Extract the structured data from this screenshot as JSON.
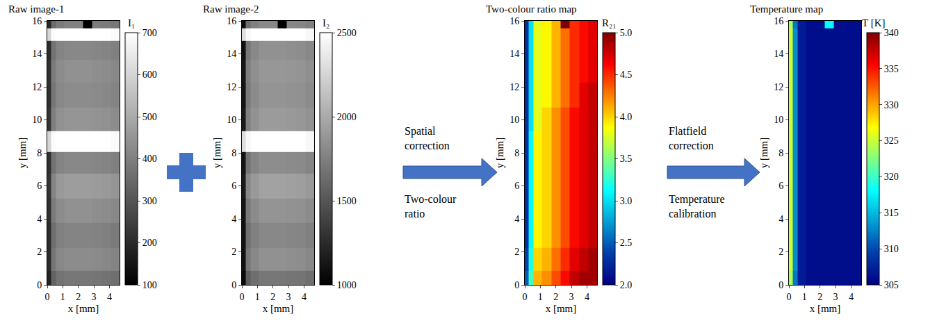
{
  "chart_data": [
    {
      "type": "heatmap",
      "title": "Raw image-1",
      "x_label": "x [mm]",
      "y_label": "y [mm]",
      "colorbar_title": "I₁",
      "color": "gray",
      "xlim": [
        0,
        4.65
      ],
      "ylim": [
        0,
        16
      ],
      "xticks": [
        0,
        1,
        2,
        3,
        4
      ],
      "yticks": [
        0,
        2,
        4,
        6,
        8,
        10,
        12,
        14,
        16
      ],
      "grid": false,
      "zlim": [
        100,
        700
      ],
      "zticks": [
        100,
        200,
        300,
        400,
        500,
        600,
        700
      ],
      "x": [
        0.1,
        0.35,
        0.8,
        1.4,
        2.0,
        2.6,
        3.2,
        3.8,
        4.4
      ],
      "y": [
        0.2,
        1.5,
        3,
        4.5,
        6,
        7.5,
        8.6,
        10,
        11.5,
        13,
        14.3,
        15.3,
        15.8
      ],
      "z": [
        [
          180,
          330,
          370,
          380,
          380,
          380,
          375,
          370,
          360
        ],
        [
          200,
          380,
          420,
          430,
          430,
          430,
          425,
          420,
          410
        ],
        [
          200,
          360,
          400,
          410,
          410,
          410,
          405,
          400,
          390
        ],
        [
          210,
          390,
          430,
          440,
          440,
          440,
          435,
          430,
          420
        ],
        [
          220,
          410,
          460,
          470,
          470,
          470,
          465,
          460,
          450
        ],
        [
          210,
          370,
          410,
          420,
          420,
          420,
          415,
          410,
          400
        ],
        [
          600,
          690,
          700,
          700,
          700,
          700,
          700,
          700,
          690
        ],
        [
          220,
          400,
          440,
          450,
          450,
          450,
          445,
          440,
          430
        ],
        [
          210,
          380,
          420,
          430,
          430,
          430,
          425,
          420,
          410
        ],
        [
          210,
          390,
          430,
          440,
          440,
          440,
          435,
          430,
          420
        ],
        [
          200,
          370,
          410,
          420,
          420,
          420,
          415,
          410,
          400
        ],
        [
          600,
          690,
          700,
          700,
          700,
          700,
          700,
          700,
          690
        ],
        [
          190,
          350,
          390,
          400,
          400,
          100,
          395,
          390,
          380
        ]
      ]
    },
    {
      "type": "heatmap",
      "title": "Raw image-2",
      "x_label": "x [mm]",
      "y_label": "y [mm]",
      "colorbar_title": "I₂",
      "color": "gray",
      "xlim": [
        0,
        4.65
      ],
      "ylim": [
        0,
        16
      ],
      "xticks": [
        0,
        1,
        2,
        3,
        4
      ],
      "yticks": [
        0,
        2,
        4,
        6,
        8,
        10,
        12,
        14,
        16
      ],
      "grid": false,
      "zlim": [
        1000,
        2500
      ],
      "zticks": [
        1000,
        1500,
        2000,
        2500
      ],
      "x": [
        0.1,
        0.35,
        0.8,
        1.4,
        2.0,
        2.6,
        3.2,
        3.8,
        4.4
      ],
      "y": [
        0.2,
        1.5,
        3,
        4.5,
        6,
        7.5,
        8.6,
        10,
        11.5,
        13,
        14.3,
        15.3,
        15.8
      ],
      "z": [
        [
          1050,
          1550,
          1650,
          1700,
          1700,
          1700,
          1690,
          1680,
          1650
        ],
        [
          1100,
          1700,
          1800,
          1850,
          1850,
          1850,
          1840,
          1830,
          1800
        ],
        [
          1100,
          1650,
          1750,
          1800,
          1800,
          1800,
          1790,
          1780,
          1750
        ],
        [
          1120,
          1720,
          1820,
          1870,
          1870,
          1870,
          1860,
          1850,
          1820
        ],
        [
          1150,
          1800,
          1900,
          1950,
          1950,
          1950,
          1940,
          1930,
          1900
        ],
        [
          1120,
          1680,
          1780,
          1830,
          1830,
          1830,
          1820,
          1810,
          1780
        ],
        [
          2300,
          2450,
          2500,
          2500,
          2500,
          2500,
          2500,
          2500,
          2450
        ],
        [
          1150,
          1760,
          1860,
          1910,
          1910,
          1910,
          1900,
          1890,
          1860
        ],
        [
          1120,
          1720,
          1820,
          1870,
          1870,
          1870,
          1860,
          1850,
          1820
        ],
        [
          1130,
          1740,
          1840,
          1890,
          1890,
          1890,
          1880,
          1870,
          1840
        ],
        [
          1100,
          1700,
          1800,
          1850,
          1850,
          1850,
          1840,
          1830,
          1800
        ],
        [
          2300,
          2450,
          2500,
          2500,
          2500,
          2500,
          2500,
          2500,
          2450
        ],
        [
          1080,
          1650,
          1750,
          1800,
          1800,
          1000,
          1790,
          1780,
          1750
        ]
      ]
    },
    {
      "type": "heatmap",
      "title": "Two-colour ratio map",
      "x_label": "x [mm]",
      "y_label": "y [mm]",
      "colorbar_title": "R₂₁",
      "color": "jet",
      "xlim": [
        0,
        4.65
      ],
      "ylim": [
        0,
        16
      ],
      "xticks": [
        0,
        1,
        2,
        3,
        4
      ],
      "yticks": [
        0,
        2,
        4,
        6,
        8,
        10,
        12,
        14,
        16
      ],
      "grid": false,
      "zlim": [
        2.0,
        5.0
      ],
      "zticks": [
        {
          "value": 2,
          "label": "2.0"
        },
        {
          "value": 2.5,
          "label": "2.5"
        },
        {
          "value": 3,
          "label": "3.0"
        },
        {
          "value": 3.5,
          "label": "3.5"
        },
        {
          "value": 4,
          "label": "4.0"
        },
        {
          "value": 4.5,
          "label": "4.5"
        },
        {
          "value": 5,
          "label": "5.0"
        }
      ],
      "x": [
        0.1,
        0.35,
        0.8,
        1.4,
        2.0,
        2.6,
        3.2,
        3.8,
        4.4
      ],
      "y": [
        0.2,
        1.5,
        3,
        4.5,
        6,
        7.5,
        8.6,
        10,
        11.5,
        13,
        14.3,
        15.3,
        15.8
      ],
      "z": [
        [
          2.5,
          3.3,
          4.1,
          4.2,
          4.4,
          4.6,
          4.8,
          4.9,
          4.9
        ],
        [
          2.4,
          3.2,
          4.0,
          4.1,
          4.3,
          4.5,
          4.7,
          4.8,
          4.9
        ],
        [
          2.3,
          3.1,
          3.9,
          4.0,
          4.2,
          4.4,
          4.6,
          4.7,
          4.8
        ],
        [
          2.3,
          3.1,
          3.9,
          4.0,
          4.2,
          4.4,
          4.6,
          4.7,
          4.8
        ],
        [
          2.3,
          3.1,
          3.9,
          4.0,
          4.2,
          4.4,
          4.6,
          4.7,
          4.8
        ],
        [
          2.3,
          3.1,
          3.9,
          4.0,
          4.2,
          4.4,
          4.6,
          4.7,
          4.8
        ],
        [
          2.3,
          3.1,
          3.9,
          4.0,
          4.2,
          4.4,
          4.6,
          4.7,
          4.8
        ],
        [
          2.3,
          3.0,
          3.8,
          4.0,
          4.2,
          4.4,
          4.6,
          4.7,
          4.8
        ],
        [
          2.3,
          3.0,
          3.8,
          3.9,
          4.1,
          4.3,
          4.5,
          4.7,
          4.8
        ],
        [
          2.3,
          3.0,
          3.8,
          3.9,
          4.1,
          4.3,
          4.5,
          4.6,
          4.7
        ],
        [
          2.3,
          3.0,
          3.8,
          3.9,
          4.1,
          4.3,
          4.5,
          4.6,
          4.7
        ],
        [
          2.3,
          3.0,
          3.8,
          3.9,
          4.1,
          4.3,
          4.5,
          4.6,
          4.7
        ],
        [
          2.3,
          3.0,
          3.8,
          3.9,
          4.1,
          5.0,
          4.5,
          4.6,
          4.7
        ]
      ]
    },
    {
      "type": "heatmap",
      "title": "Temperature map",
      "x_label": "x [mm]",
      "y_label": "y [mm]",
      "colorbar_title": "T [K]",
      "color": "jet",
      "xlim": [
        0,
        4.65
      ],
      "ylim": [
        0,
        16
      ],
      "xticks": [
        0,
        1,
        2,
        3,
        4
      ],
      "yticks": [
        0,
        2,
        4,
        6,
        8,
        10,
        12,
        14,
        16
      ],
      "grid": false,
      "zlim": [
        305,
        340
      ],
      "zticks": [
        305,
        310,
        315,
        320,
        325,
        330,
        335,
        340
      ],
      "x": [
        0.1,
        0.35,
        0.8,
        1.4,
        2.0,
        2.6,
        3.2,
        3.8,
        4.4
      ],
      "y": [
        0.2,
        1.5,
        3,
        4.5,
        6,
        7.5,
        8.6,
        10,
        11.5,
        13,
        14.3,
        15.3,
        15.8
      ],
      "z": [
        [
          324,
          312,
          307,
          306,
          306,
          306,
          306,
          306,
          306
        ],
        [
          325,
          313,
          307,
          306,
          306,
          306,
          306,
          306,
          306
        ],
        [
          325,
          313,
          307,
          306,
          306,
          306,
          306,
          306,
          306
        ],
        [
          325,
          313,
          307,
          306,
          306,
          306,
          306,
          306,
          306
        ],
        [
          325,
          313,
          307,
          306,
          306,
          306,
          306,
          306,
          306
        ],
        [
          325,
          313,
          307,
          306,
          306,
          306,
          306,
          306,
          306
        ],
        [
          325,
          313,
          307,
          306,
          306,
          306,
          306,
          306,
          306
        ],
        [
          325,
          313,
          307,
          306,
          306,
          306,
          306,
          306,
          306
        ],
        [
          325,
          313,
          307,
          306,
          306,
          306,
          306,
          306,
          306
        ],
        [
          325,
          313,
          307,
          306,
          306,
          306,
          306,
          306,
          306
        ],
        [
          325,
          313,
          307,
          306,
          306,
          306,
          306,
          306,
          306
        ],
        [
          325,
          313,
          307,
          306,
          306,
          306,
          306,
          306,
          306
        ],
        [
          324,
          312,
          307,
          306,
          306,
          318,
          306,
          306,
          306
        ]
      ]
    }
  ],
  "arrows": [
    {
      "texts": [
        "Spatial correction",
        "Two-colour ratio"
      ]
    },
    {
      "texts": [
        "Flatfield correction",
        "Temperature calibration"
      ]
    }
  ]
}
